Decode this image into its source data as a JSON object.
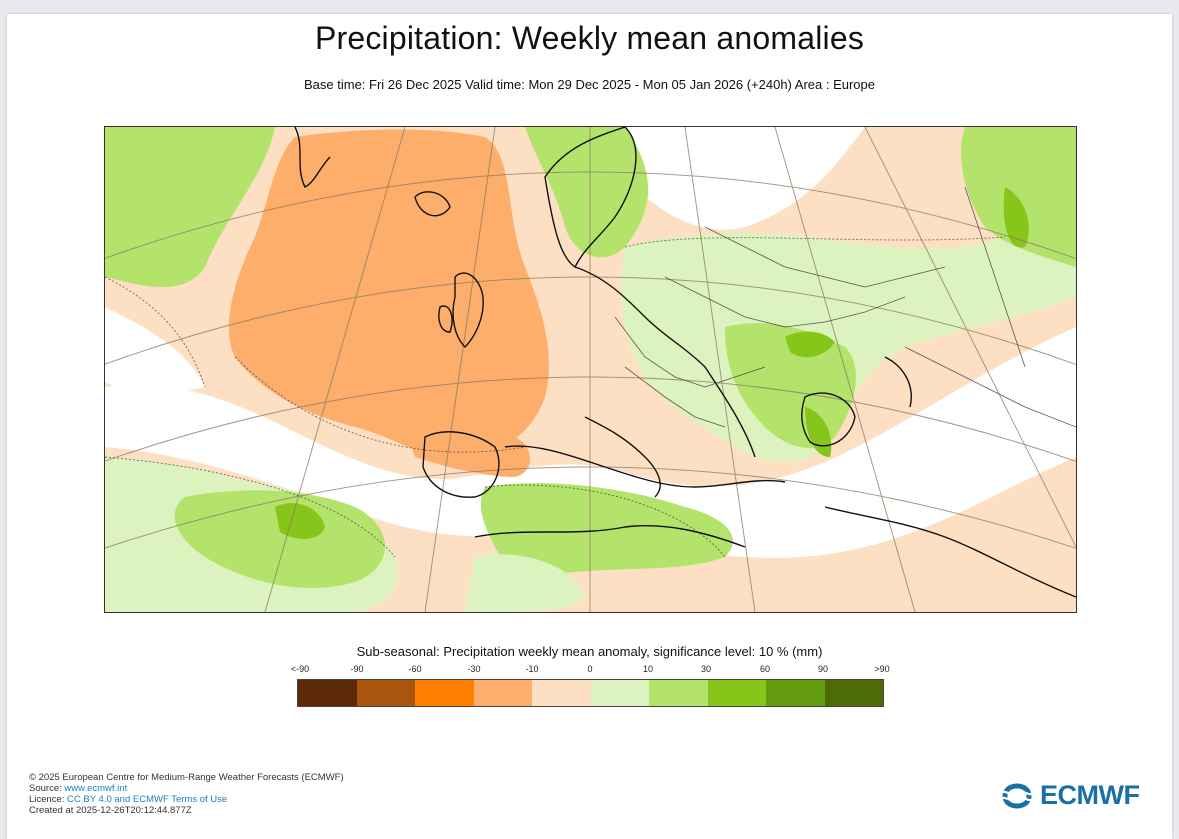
{
  "title": "Precipitation: Weekly mean anomalies",
  "subtitle": "Base time: Fri 26 Dec 2025 Valid time: Mon 29 Dec 2025 - Mon 05 Jan 2026 (+240h) Area : Europe",
  "legend": {
    "title": "Sub-seasonal: Precipitation weekly mean anomaly, significance level: 10 % (mm)",
    "ticks": [
      "<-90",
      "-90",
      "-60",
      "-30",
      "-10",
      "0",
      "10",
      "30",
      "60",
      "90",
      ">90"
    ],
    "colors": [
      "#5c2a08",
      "#a9550c",
      "#ff7f00",
      "#fdae6b",
      "#fde0c4",
      "#dcf2bf",
      "#b3e36b",
      "#86c51a",
      "#649c10",
      "#4d6b06"
    ]
  },
  "footer": {
    "copyright": "© 2025 European Centre for Medium-Range Weather Forecasts (ECMWF)",
    "source_label": "Source: ",
    "source_link": "www.ecmwf.int",
    "licence_label": "Licence: ",
    "licence_link": "CC BY 4.0 and ECMWF Terms of Use",
    "created": "Created at 2025-12-26T20:12:44.877Z"
  },
  "logo_text": "ECMWF"
}
